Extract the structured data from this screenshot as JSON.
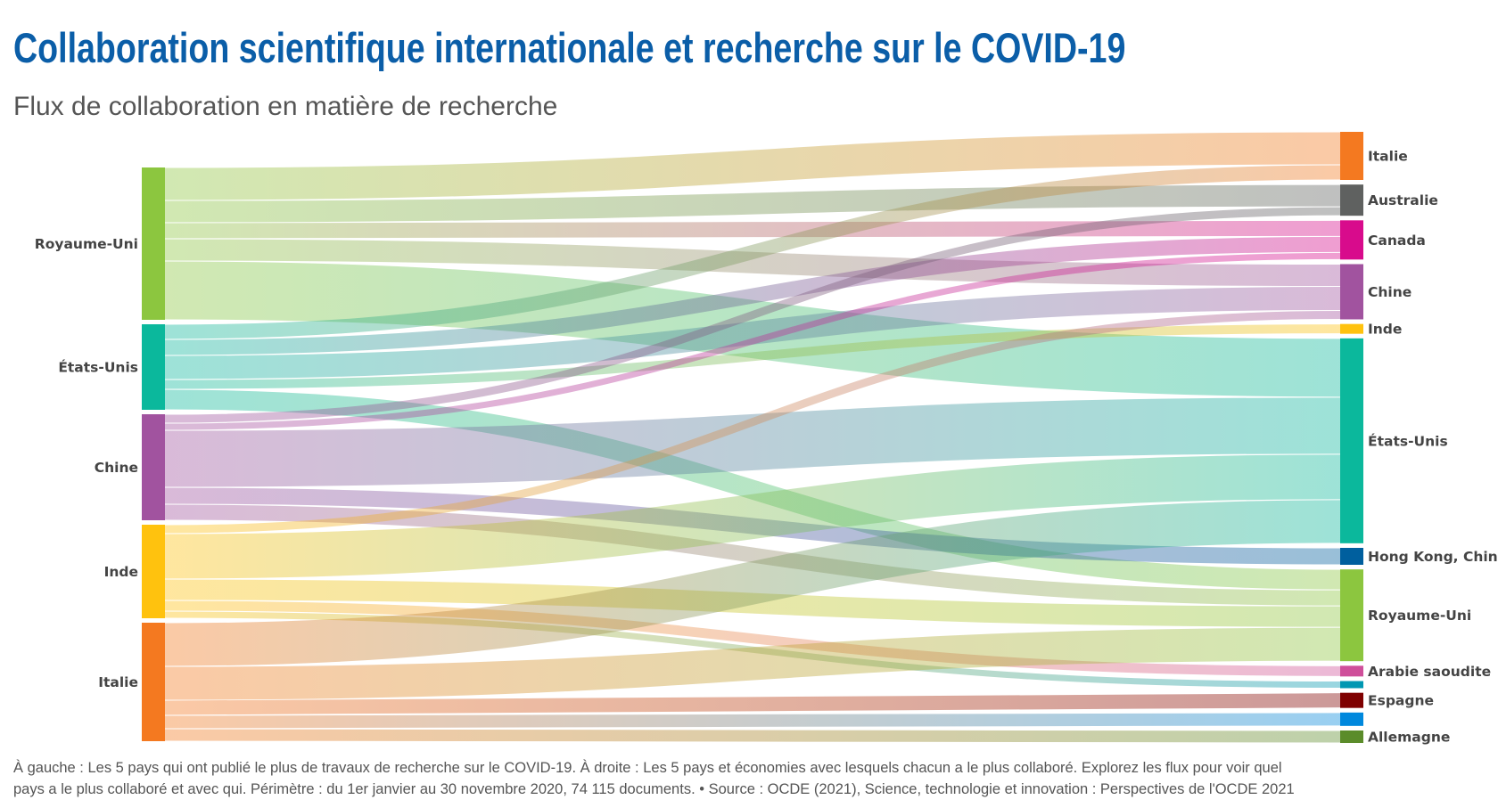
{
  "title": "Collaboration scientifique internationale et recherche sur le COVID-19",
  "subtitle": "Flux de collaboration en matière de recherche",
  "footer": {
    "line1": "À gauche : Les 5 pays qui ont publié le plus de travaux de recherche sur le COVID-19. À droite : Les 5 pays et économies avec lesquels chacun a le plus collaboré. Explorez les flux pour voir quel",
    "line2": "pays a le plus collaboré et avec qui. Périmètre : du 1er janvier au 30 novembre 2020, 74 115 documents. • Source : OCDE (2021), Science, technologie et innovation : Perspectives de l'OCDE 2021"
  },
  "chart_data": {
    "type": "sankey",
    "sources": [
      {
        "name": "Royaume-Uni",
        "color": "#8cc63f"
      },
      {
        "name": "États-Unis",
        "color": "#0bb89c"
      },
      {
        "name": "Chine",
        "color": "#a1539f"
      },
      {
        "name": "Inde",
        "color": "#ffc20e"
      },
      {
        "name": "Italie",
        "color": "#f47920"
      }
    ],
    "targets": [
      {
        "name": "Italie",
        "color": "#f47920"
      },
      {
        "name": "Australie",
        "color": "#5f6160"
      },
      {
        "name": "Canada",
        "color": "#d80b8c"
      },
      {
        "name": "Chine",
        "color": "#a1539f"
      },
      {
        "name": "Inde",
        "color": "#ffc20e"
      },
      {
        "name": "États-Unis",
        "color": "#0bb89c"
      },
      {
        "name": "Hong Kong, Chine",
        "color": "#005f9e"
      },
      {
        "name": "Royaume-Uni",
        "color": "#8cc63f"
      },
      {
        "name": "Arabie saoudite",
        "color": "#cf4f9a"
      },
      {
        "name": "",
        "color": "#0097b2"
      },
      {
        "name": "Espagne",
        "color": "#7f0000"
      },
      {
        "name": "",
        "color": "#0088dd"
      },
      {
        "name": "Allemagne",
        "color": "#5b8c2a"
      }
    ],
    "links": [
      {
        "source": 0,
        "target": 0,
        "value": 37
      },
      {
        "source": 0,
        "target": 1,
        "value": 25
      },
      {
        "source": 0,
        "target": 2,
        "value": 18
      },
      {
        "source": 0,
        "target": 3,
        "value": 25
      },
      {
        "source": 0,
        "target": 5,
        "value": 66
      },
      {
        "source": 1,
        "target": 0,
        "value": 17
      },
      {
        "source": 1,
        "target": 2,
        "value": 18
      },
      {
        "source": 1,
        "target": 3,
        "value": 27
      },
      {
        "source": 1,
        "target": 4,
        "value": 11
      },
      {
        "source": 1,
        "target": 7,
        "value": 23
      },
      {
        "source": 2,
        "target": 1,
        "value": 10
      },
      {
        "source": 2,
        "target": 2,
        "value": 8
      },
      {
        "source": 2,
        "target": 5,
        "value": 64
      },
      {
        "source": 2,
        "target": 6,
        "value": 19
      },
      {
        "source": 2,
        "target": 7,
        "value": 18
      },
      {
        "source": 3,
        "target": 3,
        "value": 10
      },
      {
        "source": 3,
        "target": 5,
        "value": 51
      },
      {
        "source": 3,
        "target": 7,
        "value": 24
      },
      {
        "source": 3,
        "target": 8,
        "value": 12
      },
      {
        "source": 3,
        "target": 9,
        "value": 8
      },
      {
        "source": 4,
        "target": 5,
        "value": 49
      },
      {
        "source": 4,
        "target": 7,
        "value": 38
      },
      {
        "source": 4,
        "target": 10,
        "value": 17
      },
      {
        "source": 4,
        "target": 11,
        "value": 15
      },
      {
        "source": 4,
        "target": 12,
        "value": 14
      }
    ]
  }
}
